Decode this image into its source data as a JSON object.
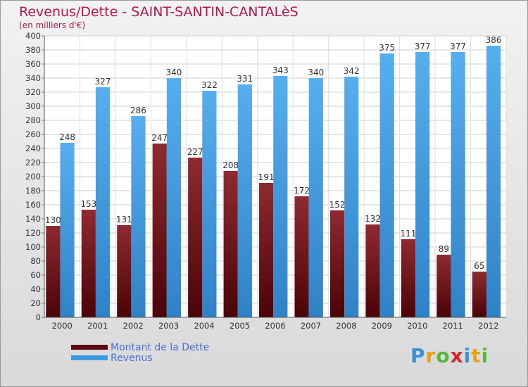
{
  "header": {
    "title": "Revenus/Dette - SAINT-SANTIN-CANTALèS",
    "subtitle": "(en milliers d'€)"
  },
  "chart_data": {
    "type": "bar",
    "categories": [
      "2000",
      "2001",
      "2002",
      "2003",
      "2004",
      "2005",
      "2006",
      "2007",
      "2008",
      "2009",
      "2010",
      "2011",
      "2012"
    ],
    "series": [
      {
        "name": "Montant de la Dette",
        "values": [
          130,
          153,
          131,
          247,
          227,
          208,
          191,
          172,
          152,
          132,
          111,
          89,
          65
        ],
        "color": "#7a1a1f"
      },
      {
        "name": "Revenus",
        "values": [
          248,
          327,
          286,
          340,
          322,
          331,
          343,
          340,
          342,
          375,
          377,
          377,
          386
        ],
        "color": "#3d9ae2"
      }
    ],
    "ylim": [
      0,
      400
    ],
    "ytick_step": 20,
    "grid": true,
    "legend_position": "bottom-left"
  },
  "legend": {
    "items": [
      {
        "label": "Montant de la Dette",
        "color": "#5a0a10"
      },
      {
        "label": "Revenus",
        "color": "#3d9ae2"
      }
    ]
  },
  "logo": {
    "letters": [
      "P",
      "r",
      "o",
      "x",
      "i",
      "t",
      "i"
    ],
    "colors": [
      "#3b8fd6",
      "#e8a11a",
      "#58b83a",
      "#d9262b",
      "#3b8fd6",
      "#e8a11a",
      "#58b83a"
    ]
  }
}
